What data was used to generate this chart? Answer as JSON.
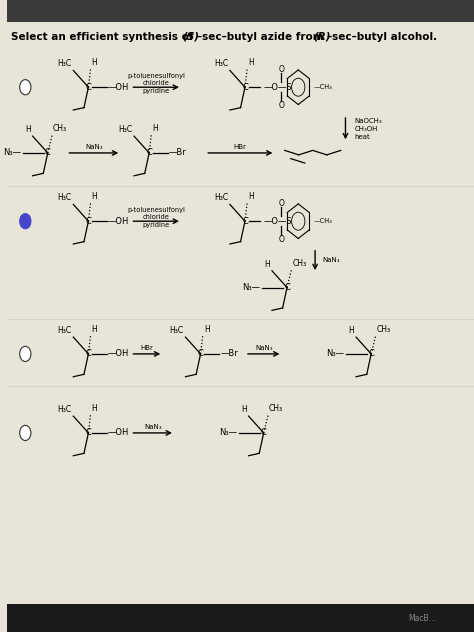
{
  "bg_top": "#3a3a3a",
  "bg_main": "#e8e4d8",
  "bg_bottom": "#1a1a1a",
  "title_bold": "Select an efficient synthesis of ",
  "title_S": "(S)",
  "title_mid": "–sec–butyl azide from ",
  "title_R": "(R)",
  "title_end": "–sec–butyl alcohol.",
  "watermark": "MacB…",
  "watermark_color": "#888888"
}
